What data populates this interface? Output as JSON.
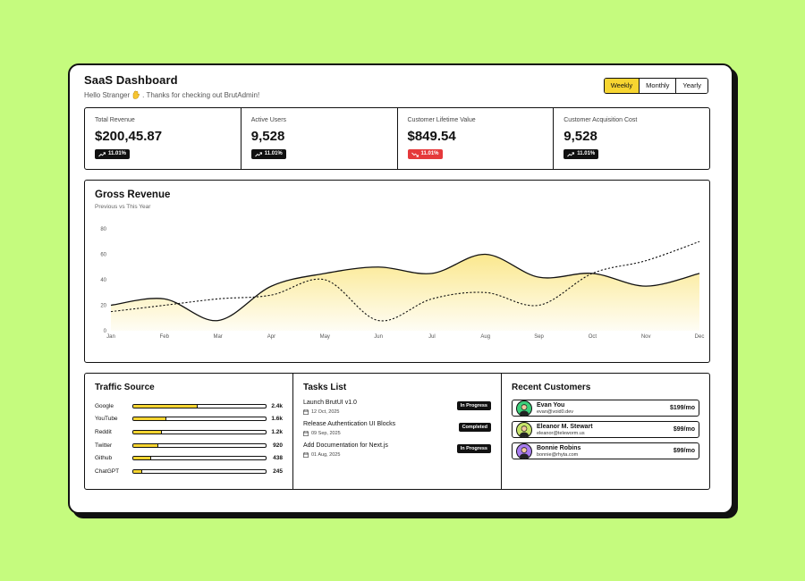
{
  "header": {
    "title": "SaaS Dashboard",
    "subtitle_pre": "Hello Stranger",
    "subtitle_post": ". Thanks for checking out BrutAdmin!"
  },
  "period_buttons": [
    "Weekly",
    "Monthly",
    "Yearly"
  ],
  "period_selected": "Weekly",
  "stats": [
    {
      "label": "Total Revenue",
      "value": "$200,45.87",
      "change": "11.01%",
      "trend": "up"
    },
    {
      "label": "Active Users",
      "value": "9,528",
      "change": "11.01%",
      "trend": "up"
    },
    {
      "label": "Customer Lifetime Value",
      "value": "$849.54",
      "change": "11.01%",
      "trend": "down"
    },
    {
      "label": "Customer Acquisition Cost",
      "value": "9,528",
      "change": "11.01%",
      "trend": "up"
    }
  ],
  "chart_data": {
    "type": "area",
    "title": "Gross Revenue",
    "subtitle": "Previous vs This Year",
    "categories": [
      "Jan",
      "Feb",
      "Mar",
      "Apr",
      "May",
      "Jun",
      "Jul",
      "Aug",
      "Sep",
      "Oct",
      "Nov",
      "Dec"
    ],
    "ylim": [
      0,
      80
    ],
    "yticks": [
      0,
      20,
      40,
      60,
      80
    ],
    "series": [
      {
        "style": "solid-area",
        "x": [
          "Jan",
          "Feb",
          "Mar",
          "Apr",
          "May",
          "Jun",
          "Jul",
          "Aug",
          "Sep",
          "Oct",
          "Nov",
          "Dec"
        ],
        "values": [
          20,
          25,
          8,
          35,
          45,
          50,
          45,
          60,
          42,
          45,
          35,
          45
        ]
      },
      {
        "style": "dashed",
        "x": [
          "Jan",
          "Feb",
          "Mar",
          "Apr",
          "May",
          "Jun",
          "Jul",
          "Aug",
          "Sep",
          "Oct",
          "Nov",
          "Dec"
        ],
        "values": [
          15,
          20,
          25,
          28,
          40,
          8,
          25,
          30,
          20,
          45,
          55,
          70
        ]
      }
    ],
    "colors": {
      "area_top": "#f7d531",
      "line": "#111111"
    }
  },
  "traffic": {
    "title": "Traffic Source",
    "items": [
      {
        "name": "Google",
        "value": "2.4k",
        "fraction": 0.48
      },
      {
        "name": "YouTube",
        "value": "1.6k",
        "fraction": 0.24
      },
      {
        "name": "Reddit",
        "value": "1.2k",
        "fraction": 0.21
      },
      {
        "name": "Twitter",
        "value": "920",
        "fraction": 0.18
      },
      {
        "name": "Github",
        "value": "438",
        "fraction": 0.13
      },
      {
        "name": "ChatGPT",
        "value": "245",
        "fraction": 0.06
      }
    ]
  },
  "tasks": {
    "title": "Tasks List",
    "items": [
      {
        "name": "Launch BrutUI v1.0",
        "date": "12 Oct, 2025",
        "status": "In Progress"
      },
      {
        "name": "Release Authentication UI Blocks",
        "date": "09 Sep, 2025",
        "status": "Completed"
      },
      {
        "name": "Add Documentation for Next.js",
        "date": "01 Aug, 2025",
        "status": "In Progress"
      }
    ]
  },
  "customers": {
    "title": "Recent Customers",
    "items": [
      {
        "name": "Evan You",
        "email": "evan@void0.dev",
        "amount": "$199/mo",
        "color": "#3ccf7a"
      },
      {
        "name": "Eleanor M. Stewart",
        "email": "eleanor@teleworm.us",
        "amount": "$99/mo",
        "color": "#c6e36a"
      },
      {
        "name": "Bonnie Robins",
        "email": "bonnie@rhyta.com",
        "amount": "$99/mo",
        "color": "#a87bf0"
      }
    ]
  }
}
